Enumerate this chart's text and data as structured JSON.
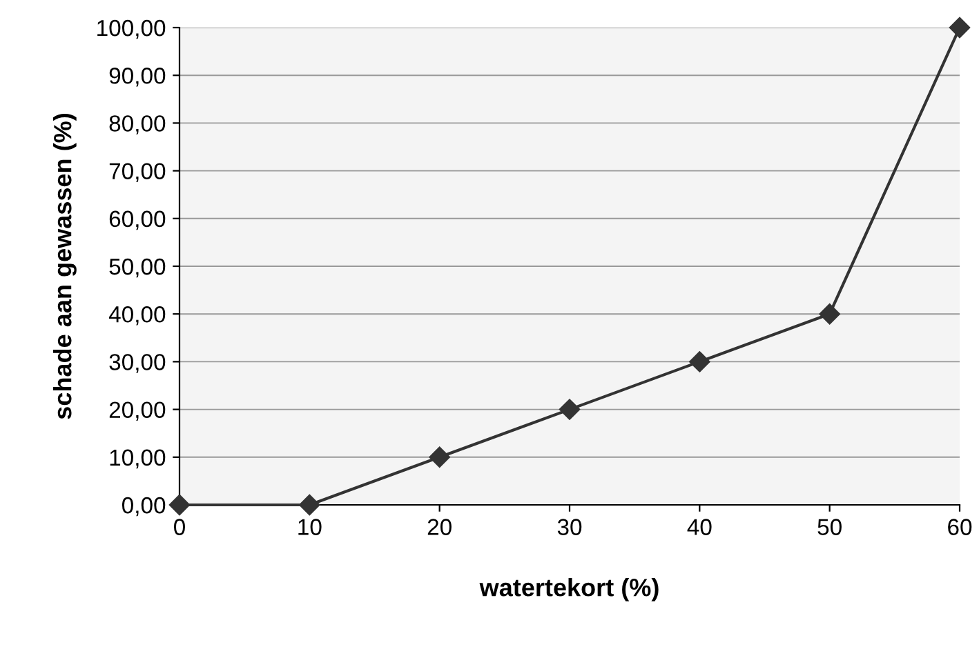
{
  "chart_data": {
    "type": "line",
    "xlabel": "watertekort (%)",
    "ylabel": "schade aan gewassen (%)",
    "x": [
      0,
      10,
      20,
      30,
      40,
      50,
      60
    ],
    "series": [
      {
        "color": "#333333",
        "values": [
          0,
          0,
          10,
          20,
          30,
          40,
          100
        ]
      }
    ],
    "xlim": [
      0,
      60
    ],
    "xticks": [
      0,
      10,
      20,
      30,
      40,
      50,
      60
    ],
    "ylim": [
      0,
      100
    ],
    "yticks": [
      {
        "value": 0,
        "label": "0,00"
      },
      {
        "value": 10,
        "label": "10,00"
      },
      {
        "value": 20,
        "label": "20,00"
      },
      {
        "value": 30,
        "label": "30,00"
      },
      {
        "value": 40,
        "label": "40,00"
      },
      {
        "value": 50,
        "label": "50,00"
      },
      {
        "value": 60,
        "label": "60,00"
      },
      {
        "value": 70,
        "label": "70,00"
      },
      {
        "value": 80,
        "label": "80,00"
      },
      {
        "value": 90,
        "label": "90,00"
      },
      {
        "value": 100,
        "label": "100,00"
      }
    ],
    "grid": "y",
    "marker": "diamond",
    "line_style": "solid"
  }
}
